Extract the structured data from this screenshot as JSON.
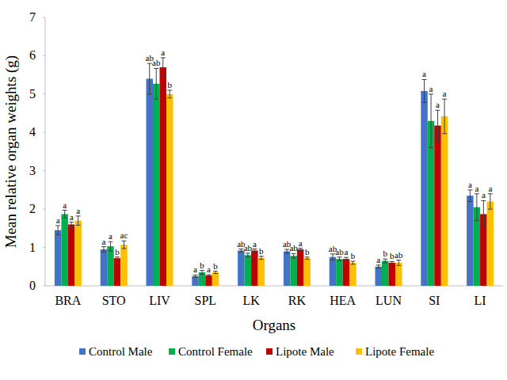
{
  "chart_data": {
    "type": "bar",
    "x_label": "Organs",
    "y_label": "Mean relative organ weights (g)",
    "categories": [
      "BRA",
      "STO",
      "LIV",
      "SPL",
      "LK",
      "RK",
      "HEA",
      "LUN",
      "SI",
      "LI"
    ],
    "ylim": [
      0,
      7
    ],
    "yticks": [
      0,
      1,
      2,
      3,
      4,
      5,
      6,
      7
    ],
    "grid": false,
    "legend": "bottom",
    "series": [
      {
        "name": "Control Male",
        "color": "#4472c4",
        "values": [
          1.45,
          0.95,
          5.4,
          0.25,
          0.92,
          0.9,
          0.75,
          0.5,
          5.08,
          2.35
        ],
        "errors": [
          0.12,
          0.07,
          0.4,
          0.03,
          0.04,
          0.05,
          0.08,
          0.04,
          0.3,
          0.15
        ],
        "letters": [
          "a",
          "a",
          "ab",
          "a",
          "ab",
          "ab",
          "ab",
          "a",
          "a",
          "a"
        ]
      },
      {
        "name": "Control Female",
        "color": "#00b050",
        "values": [
          1.87,
          1.03,
          5.27,
          0.35,
          0.8,
          0.78,
          0.7,
          0.65,
          4.3,
          2.05
        ],
        "errors": [
          0.1,
          0.12,
          0.4,
          0.05,
          0.05,
          0.06,
          0.05,
          0.05,
          0.7,
          0.35
        ],
        "letters": [
          "a",
          "a",
          "ab",
          "b",
          "ab",
          "ab",
          "ab",
          "b",
          "a",
          "a"
        ]
      },
      {
        "name": "Lipote Male",
        "color": "#c00000",
        "values": [
          1.6,
          0.72,
          5.7,
          0.27,
          0.92,
          0.95,
          0.7,
          0.6,
          4.18,
          1.87
        ],
        "errors": [
          0.06,
          0.03,
          0.25,
          0.02,
          0.04,
          0.03,
          0.04,
          0.03,
          0.4,
          0.35
        ],
        "letters": [
          "a",
          "b",
          "a",
          "a",
          "a",
          "a",
          "a",
          "b",
          "a",
          "a"
        ]
      },
      {
        "name": "Lipote Female",
        "color": "#ffc000",
        "values": [
          1.7,
          1.07,
          5.0,
          0.35,
          0.73,
          0.72,
          0.6,
          0.6,
          4.42,
          2.2
        ],
        "errors": [
          0.12,
          0.1,
          0.1,
          0.03,
          0.04,
          0.03,
          0.04,
          0.07,
          0.45,
          0.2
        ],
        "letters": [
          "a",
          "ac",
          "b",
          "b",
          "b",
          "b",
          "b",
          "ab",
          "a",
          "a"
        ]
      }
    ]
  }
}
